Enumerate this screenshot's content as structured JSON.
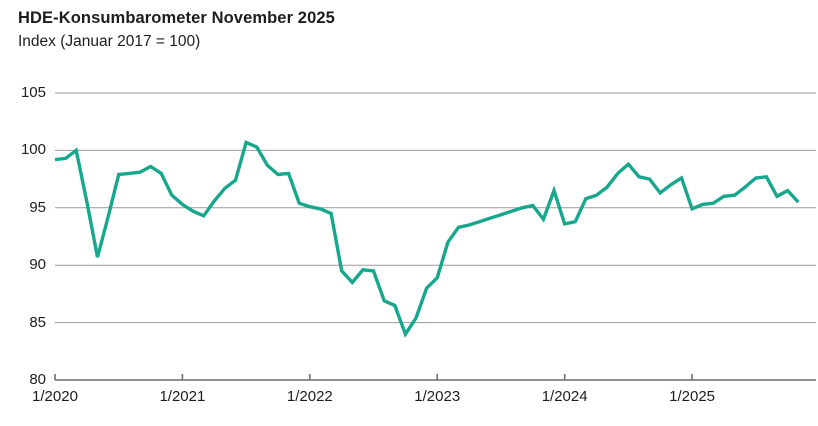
{
  "header": {
    "title": "HDE-Konsumbarometer November 2025",
    "subtitle": "Index (Januar 2017 = 100)"
  },
  "chart_data": {
    "type": "line",
    "title": "HDE-Konsumbarometer November 2025",
    "subtitle": "Index (Januar 2017 = 100)",
    "xlabel": "",
    "ylabel": "Index (Januar 2017 = 100)",
    "ylim": [
      80,
      105
    ],
    "grid": true,
    "legend_position": "none",
    "line_color": "#17a78c",
    "gridline_color": "#9a9a9a",
    "axis_color": "#6e6e6e",
    "text_color": "#1d1d1b",
    "y_ticks": [
      105,
      100,
      95,
      90,
      85,
      80
    ],
    "x_ticks": [
      {
        "label": "1/2020",
        "month_index": 0
      },
      {
        "label": "1/2021",
        "month_index": 12
      },
      {
        "label": "1/2022",
        "month_index": 24
      },
      {
        "label": "1/2023",
        "month_index": 36
      },
      {
        "label": "1/2024",
        "month_index": 48
      },
      {
        "label": "1/2025",
        "month_index": 60
      }
    ],
    "start_month": "1/2020",
    "end_month": "11/2025",
    "series": [
      {
        "name": "HDE-Konsumbarometer",
        "values": [
          99.2,
          99.3,
          100.0,
          95.5,
          90.7,
          94.2,
          97.9,
          98.0,
          98.1,
          98.6,
          98.0,
          96.1,
          95.3,
          94.7,
          94.3,
          95.6,
          96.7,
          97.4,
          100.7,
          100.3,
          98.7,
          97.9,
          98.0,
          95.4,
          95.1,
          94.9,
          94.5,
          89.5,
          88.5,
          89.6,
          89.5,
          86.9,
          86.5,
          84.0,
          85.4,
          88.0,
          88.9,
          92.0,
          93.3,
          93.5,
          93.8,
          94.1,
          94.4,
          94.7,
          95.0,
          95.2,
          94.0,
          96.5,
          93.6,
          93.8,
          95.8,
          96.1,
          96.8,
          98.0,
          98.8,
          97.7,
          97.5,
          96.3,
          97.0,
          97.6,
          94.9,
          95.3,
          95.4,
          96.0,
          96.1,
          96.8,
          97.6,
          97.7,
          96.0,
          96.5,
          95.5
        ]
      }
    ]
  }
}
